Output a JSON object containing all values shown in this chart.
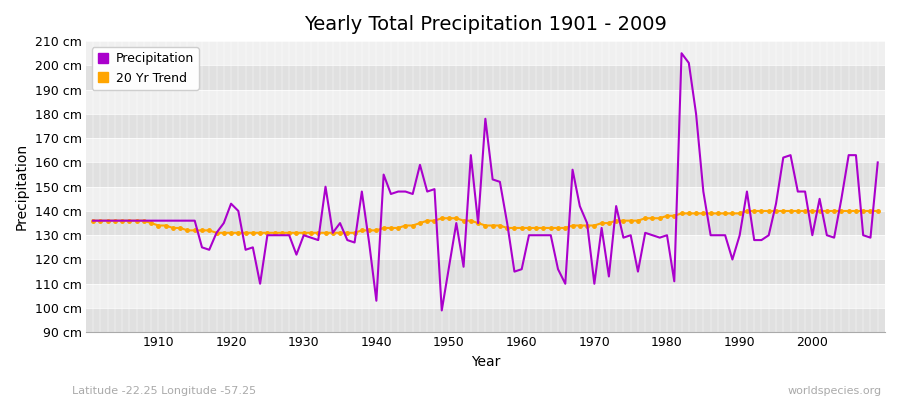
{
  "title": "Yearly Total Precipitation 1901 - 2009",
  "xlabel": "Year",
  "ylabel": "Precipitation",
  "subtitle": "Latitude -22.25 Longitude -57.25",
  "watermark": "worldspecies.org",
  "ylim": [
    90,
    210
  ],
  "yticks": [
    90,
    100,
    110,
    120,
    130,
    140,
    150,
    160,
    170,
    180,
    190,
    200,
    210
  ],
  "years": [
    1901,
    1902,
    1903,
    1904,
    1905,
    1906,
    1907,
    1908,
    1909,
    1910,
    1911,
    1912,
    1913,
    1914,
    1915,
    1916,
    1917,
    1918,
    1919,
    1920,
    1921,
    1922,
    1923,
    1924,
    1925,
    1926,
    1927,
    1928,
    1929,
    1930,
    1931,
    1932,
    1933,
    1934,
    1935,
    1936,
    1937,
    1938,
    1939,
    1940,
    1941,
    1942,
    1943,
    1944,
    1945,
    1946,
    1947,
    1948,
    1949,
    1950,
    1951,
    1952,
    1953,
    1954,
    1955,
    1956,
    1957,
    1958,
    1959,
    1960,
    1961,
    1962,
    1963,
    1964,
    1965,
    1966,
    1967,
    1968,
    1969,
    1970,
    1971,
    1972,
    1973,
    1974,
    1975,
    1976,
    1977,
    1978,
    1979,
    1980,
    1981,
    1982,
    1983,
    1984,
    1985,
    1986,
    1987,
    1988,
    1989,
    1990,
    1991,
    1992,
    1993,
    1994,
    1995,
    1996,
    1997,
    1998,
    1999,
    2000,
    2001,
    2002,
    2003,
    2004,
    2005,
    2006,
    2007,
    2008,
    2009
  ],
  "precipitation": [
    136,
    136,
    136,
    136,
    136,
    136,
    136,
    136,
    136,
    136,
    136,
    136,
    136,
    136,
    136,
    125,
    124,
    131,
    135,
    143,
    140,
    124,
    125,
    110,
    130,
    130,
    130,
    130,
    122,
    130,
    129,
    128,
    150,
    131,
    135,
    128,
    127,
    148,
    127,
    103,
    155,
    147,
    148,
    148,
    147,
    159,
    148,
    149,
    99,
    117,
    135,
    117,
    163,
    135,
    178,
    153,
    152,
    135,
    115,
    116,
    130,
    130,
    130,
    130,
    116,
    110,
    157,
    142,
    135,
    110,
    133,
    113,
    142,
    129,
    130,
    115,
    131,
    130,
    129,
    130,
    111,
    205,
    201,
    180,
    148,
    130,
    130,
    130,
    120,
    130,
    148,
    128,
    128,
    130,
    143,
    162,
    163,
    148,
    148,
    130,
    145,
    130,
    129,
    145,
    163,
    163,
    130,
    129,
    160
  ],
  "trend": [
    136,
    136,
    136,
    136,
    136,
    136,
    136,
    136,
    135,
    134,
    134,
    133,
    133,
    132,
    132,
    132,
    132,
    131,
    131,
    131,
    131,
    131,
    131,
    131,
    131,
    131,
    131,
    131,
    131,
    131,
    131,
    131,
    131,
    131,
    131,
    131,
    131,
    132,
    132,
    132,
    133,
    133,
    133,
    134,
    134,
    135,
    136,
    136,
    137,
    137,
    137,
    136,
    136,
    135,
    134,
    134,
    134,
    133,
    133,
    133,
    133,
    133,
    133,
    133,
    133,
    133,
    134,
    134,
    134,
    134,
    135,
    135,
    136,
    136,
    136,
    136,
    137,
    137,
    137,
    138,
    138,
    139,
    139,
    139,
    139,
    139,
    139,
    139,
    139,
    139,
    140,
    140,
    140,
    140,
    140,
    140,
    140,
    140,
    140,
    140,
    140,
    140,
    140,
    140,
    140,
    140,
    140,
    140,
    140
  ],
  "precip_color": "#AA00CC",
  "trend_color": "#FFA500",
  "bg_color": "#FFFFFF",
  "plot_bg_color": "#F0F0F0",
  "band_color_dark": "#E0E0E0",
  "band_color_light": "#F0F0F0",
  "grid_color": "#FFFFFF",
  "title_fontsize": 14,
  "axis_fontsize": 10,
  "tick_fontsize": 9,
  "legend_fontsize": 9,
  "subtitle_color": "#AAAAAA",
  "watermark_color": "#AAAAAA"
}
